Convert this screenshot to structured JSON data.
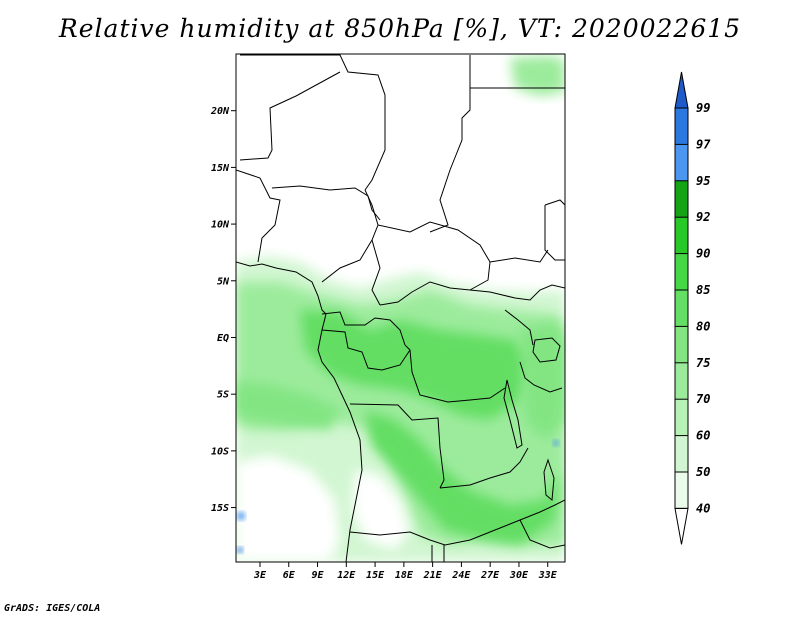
{
  "title": "Relative humidity at 850hPa [%], VT: 2020022615",
  "footer": "GrADS: IGES/COLA",
  "lat_labels": [
    {
      "text": "20N",
      "lat": 20
    },
    {
      "text": "15N",
      "lat": 15
    },
    {
      "text": "10N",
      "lat": 10
    },
    {
      "text": "5N",
      "lat": 5
    },
    {
      "text": "EQ",
      "lat": 0
    },
    {
      "text": "5S",
      "lat": -5
    },
    {
      "text": "10S",
      "lat": -10
    },
    {
      "text": "15S",
      "lat": -15
    }
  ],
  "lon_labels": [
    {
      "text": "3E",
      "lon": 3
    },
    {
      "text": "6E",
      "lon": 6
    },
    {
      "text": "9E",
      "lon": 9
    },
    {
      "text": "12E",
      "lon": 12
    },
    {
      "text": "15E",
      "lon": 15
    },
    {
      "text": "18E",
      "lon": 18
    },
    {
      "text": "21E",
      "lon": 21
    },
    {
      "text": "24E",
      "lon": 24
    },
    {
      "text": "27E",
      "lon": 27
    },
    {
      "text": "30E",
      "lon": 30
    },
    {
      "text": "33E",
      "lon": 33
    }
  ],
  "map_extent": {
    "lon_min": 0.5,
    "lon_max": 34.8,
    "lat_min": -19.8,
    "lat_max": 25.0
  },
  "legend": {
    "levels": [
      "40",
      "50",
      "60",
      "70",
      "75",
      "80",
      "85",
      "90",
      "92",
      "95",
      "97",
      "99"
    ],
    "colors": [
      "#ebfbeb",
      "#d1f6d1",
      "#b6f1b6",
      "#9ceb9c",
      "#82e582",
      "#64de64",
      "#46d746",
      "#28c828",
      "#15a415",
      "#4b96f0",
      "#2a78e0",
      "#1e5ac8"
    ],
    "lower_color": "#ffffff",
    "upper_color": "#1e5ac8"
  }
}
